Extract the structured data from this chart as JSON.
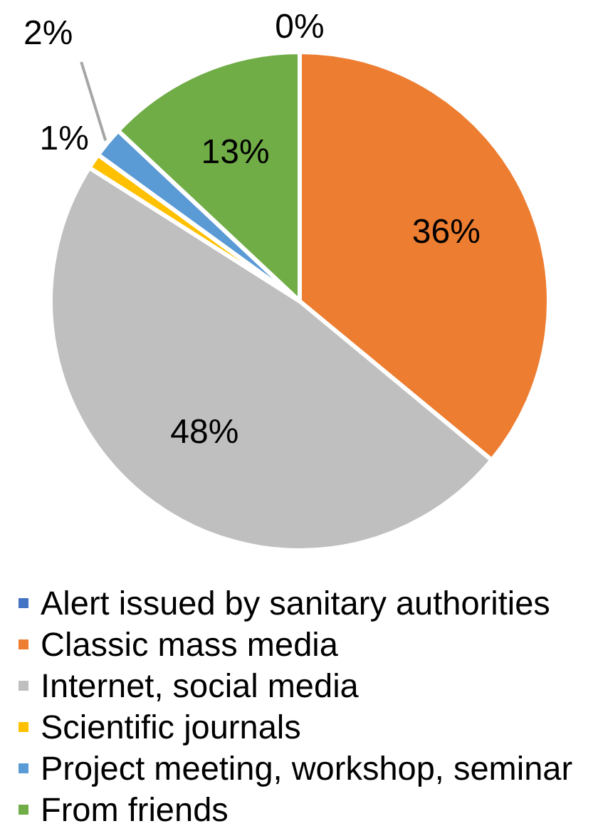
{
  "chart_data": {
    "type": "pie",
    "categories": [
      "Alert issued by sanitary authorities",
      "Classic mass media",
      "Internet, social media",
      "Scientific journals",
      "Project meeting, workshop, seminar",
      "From friends"
    ],
    "values": [
      0,
      36,
      48,
      1,
      2,
      13
    ],
    "colors": [
      "#4472c4",
      "#ed7d31",
      "#bfbfbf",
      "#ffc000",
      "#5b9bd5",
      "#70ad47"
    ],
    "value_labels": [
      "0%",
      "36%",
      "48%",
      "1%",
      "2%",
      "13%"
    ],
    "legend": "bottom"
  }
}
